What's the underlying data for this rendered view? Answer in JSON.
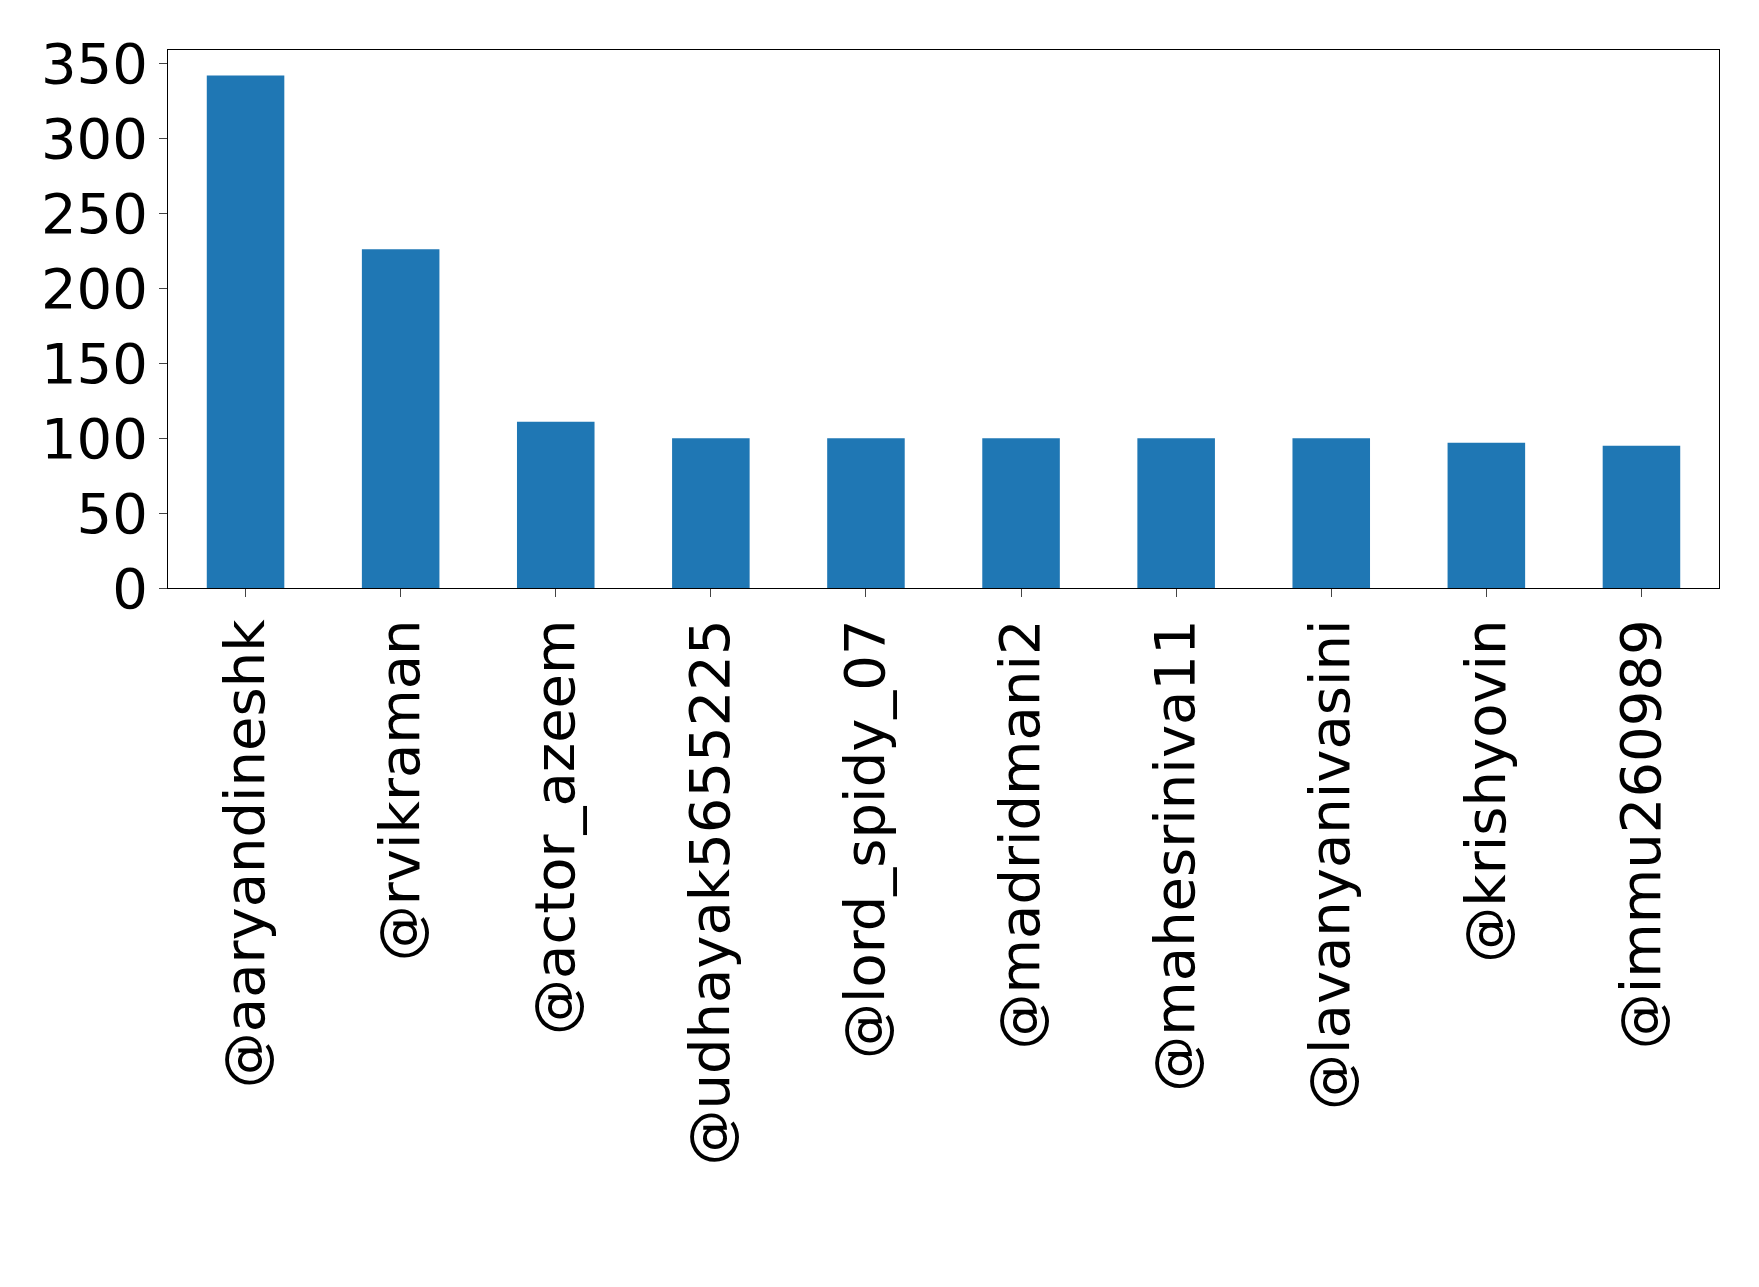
{
  "chart_data": {
    "type": "bar",
    "categories": [
      "@aaryandineshk",
      "@rvikraman",
      "@actor_azeem",
      "@udhayak5655225",
      "@lord_spidy_07",
      "@madridmani2",
      "@mahesriniva11",
      "@lavanyanivasini",
      "@krishyovin",
      "@immu260989"
    ],
    "values": [
      342,
      226,
      111,
      100,
      100,
      100,
      100,
      100,
      97,
      95
    ],
    "color": "#1f77b4",
    "ylim": [
      0,
      359
    ],
    "yticks": [
      0,
      50,
      100,
      150,
      200,
      250,
      300,
      350
    ]
  }
}
